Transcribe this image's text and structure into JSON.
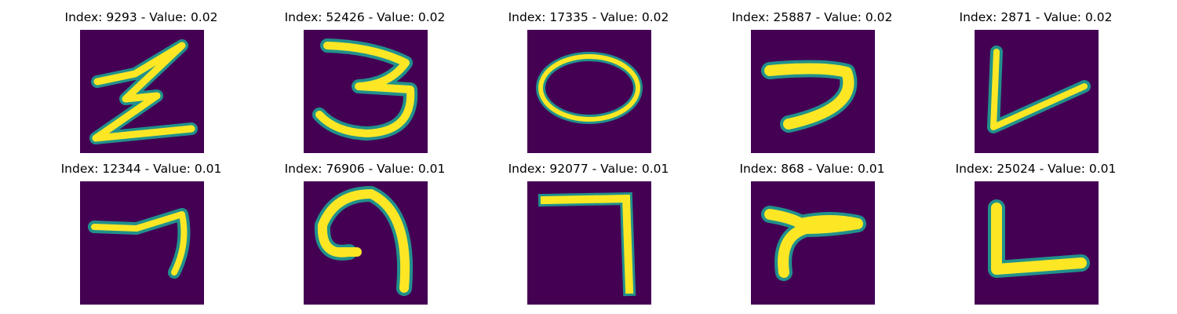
{
  "grid": {
    "row1": [
      {
        "title": "Index: 9293 - Value: 0.02",
        "digit_icon": "zigzag-z-glyph"
      },
      {
        "title": "Index: 52426 - Value: 0.02",
        "digit_icon": "three-glyph"
      },
      {
        "title": "Index: 17335 - Value: 0.02",
        "digit_icon": "zero-glyph"
      },
      {
        "title": "Index: 25887 - Value: 0.02",
        "digit_icon": "hook-glyph"
      },
      {
        "title": "Index: 2871 - Value: 0.02",
        "digit_icon": "v-glyph"
      }
    ],
    "row2": [
      {
        "title": "Index: 12344 - Value: 0.01",
        "digit_icon": "seven-glyph"
      },
      {
        "title": "Index: 76906 - Value: 0.01",
        "digit_icon": "nine-glyph"
      },
      {
        "title": "Index: 92077 - Value: 0.01",
        "digit_icon": "seven-bar-glyph"
      },
      {
        "title": "Index: 868 - Value: 0.01",
        "digit_icon": "swoosh-glyph"
      },
      {
        "title": "Index: 25024 - Value: 0.01",
        "digit_icon": "l-glyph"
      }
    ]
  },
  "colors": {
    "background": "#440154",
    "stroke": "#fde725",
    "edge": "#21918c"
  }
}
